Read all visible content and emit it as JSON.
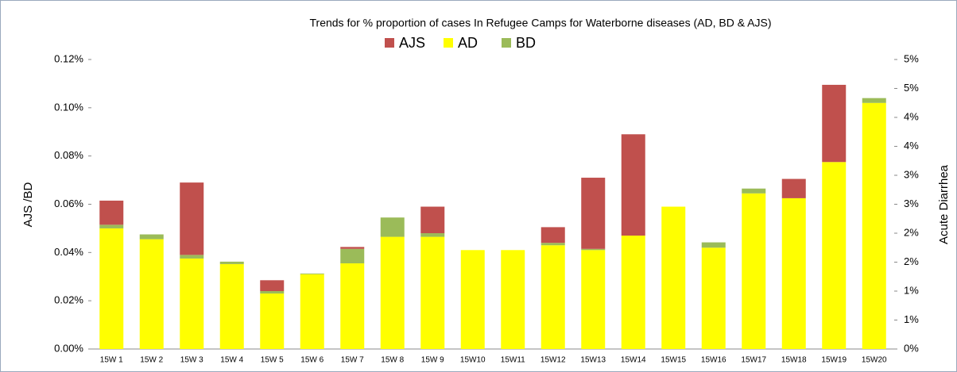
{
  "chart_data": {
    "type": "stacked_bar",
    "title": "Trends for % proportion of cases In Refugee Camps for Waterborne diseases (AD, BD & AJS)",
    "ylabel": "AJS /BD",
    "y2label": "Acute Diarrhea",
    "categories": [
      "15W 1",
      "15W 2",
      "15W 3",
      "15W 4",
      "15W 5",
      "15W 6",
      "15W 7",
      "15W 8",
      "15W 9",
      "15W10",
      "15W11",
      "15W12",
      "15W13",
      "15W14",
      "15W15",
      "15W16",
      "15W17",
      "15W18",
      "15W19",
      "15W20"
    ],
    "series": [
      {
        "name": "AJS",
        "color": "#c0504d",
        "values": [
          0.01,
          0,
          0.03,
          0,
          0.0045,
          0,
          0.0008,
          0,
          0.011,
          0,
          0,
          0.0065,
          0.0295,
          0.042,
          0,
          0,
          0,
          0.008,
          0.032,
          0
        ]
      },
      {
        "name": "AD",
        "color": "#ffff00",
        "values": [
          0.05,
          0.0455,
          0.0375,
          0.0352,
          0.023,
          0.031,
          0.0355,
          0.0465,
          0.0465,
          0.041,
          0.041,
          0.043,
          0.041,
          0.047,
          0.059,
          0.042,
          0.0645,
          0.0625,
          0.0775,
          0.102
        ]
      },
      {
        "name": "BD",
        "color": "#9bbb59",
        "values": [
          0.0015,
          0.002,
          0.0015,
          0.001,
          0.001,
          0.0003,
          0.006,
          0.008,
          0.0015,
          0,
          0,
          0.001,
          0.0005,
          0,
          0,
          0.0022,
          0.002,
          0,
          0,
          0.002
        ]
      }
    ],
    "ylim": [
      0,
      0.12
    ],
    "yticks": [
      {
        "value": 0,
        "label": "0.00%"
      },
      {
        "value": 0.02,
        "label": "0.02%"
      },
      {
        "value": 0.04,
        "label": "0.04%"
      },
      {
        "value": 0.06,
        "label": "0.06%"
      },
      {
        "value": 0.08,
        "label": "0.08%"
      },
      {
        "value": 0.1,
        "label": "0.10%"
      },
      {
        "value": 0.12,
        "label": "0.12%"
      }
    ],
    "y2lim": [
      0,
      5
    ],
    "y2ticks": [
      {
        "value": 0,
        "label": "0%"
      },
      {
        "value": 0.5,
        "label": "1%"
      },
      {
        "value": 1,
        "label": "1%"
      },
      {
        "value": 1.5,
        "label": "2%"
      },
      {
        "value": 2,
        "label": "2%"
      },
      {
        "value": 2.5,
        "label": "3%"
      },
      {
        "value": 3,
        "label": "3%"
      },
      {
        "value": 3.5,
        "label": "4%"
      },
      {
        "value": 4,
        "label": "4%"
      },
      {
        "value": 4.5,
        "label": "5%"
      },
      {
        "value": 5,
        "label": "5%"
      }
    ],
    "legend": "top"
  }
}
